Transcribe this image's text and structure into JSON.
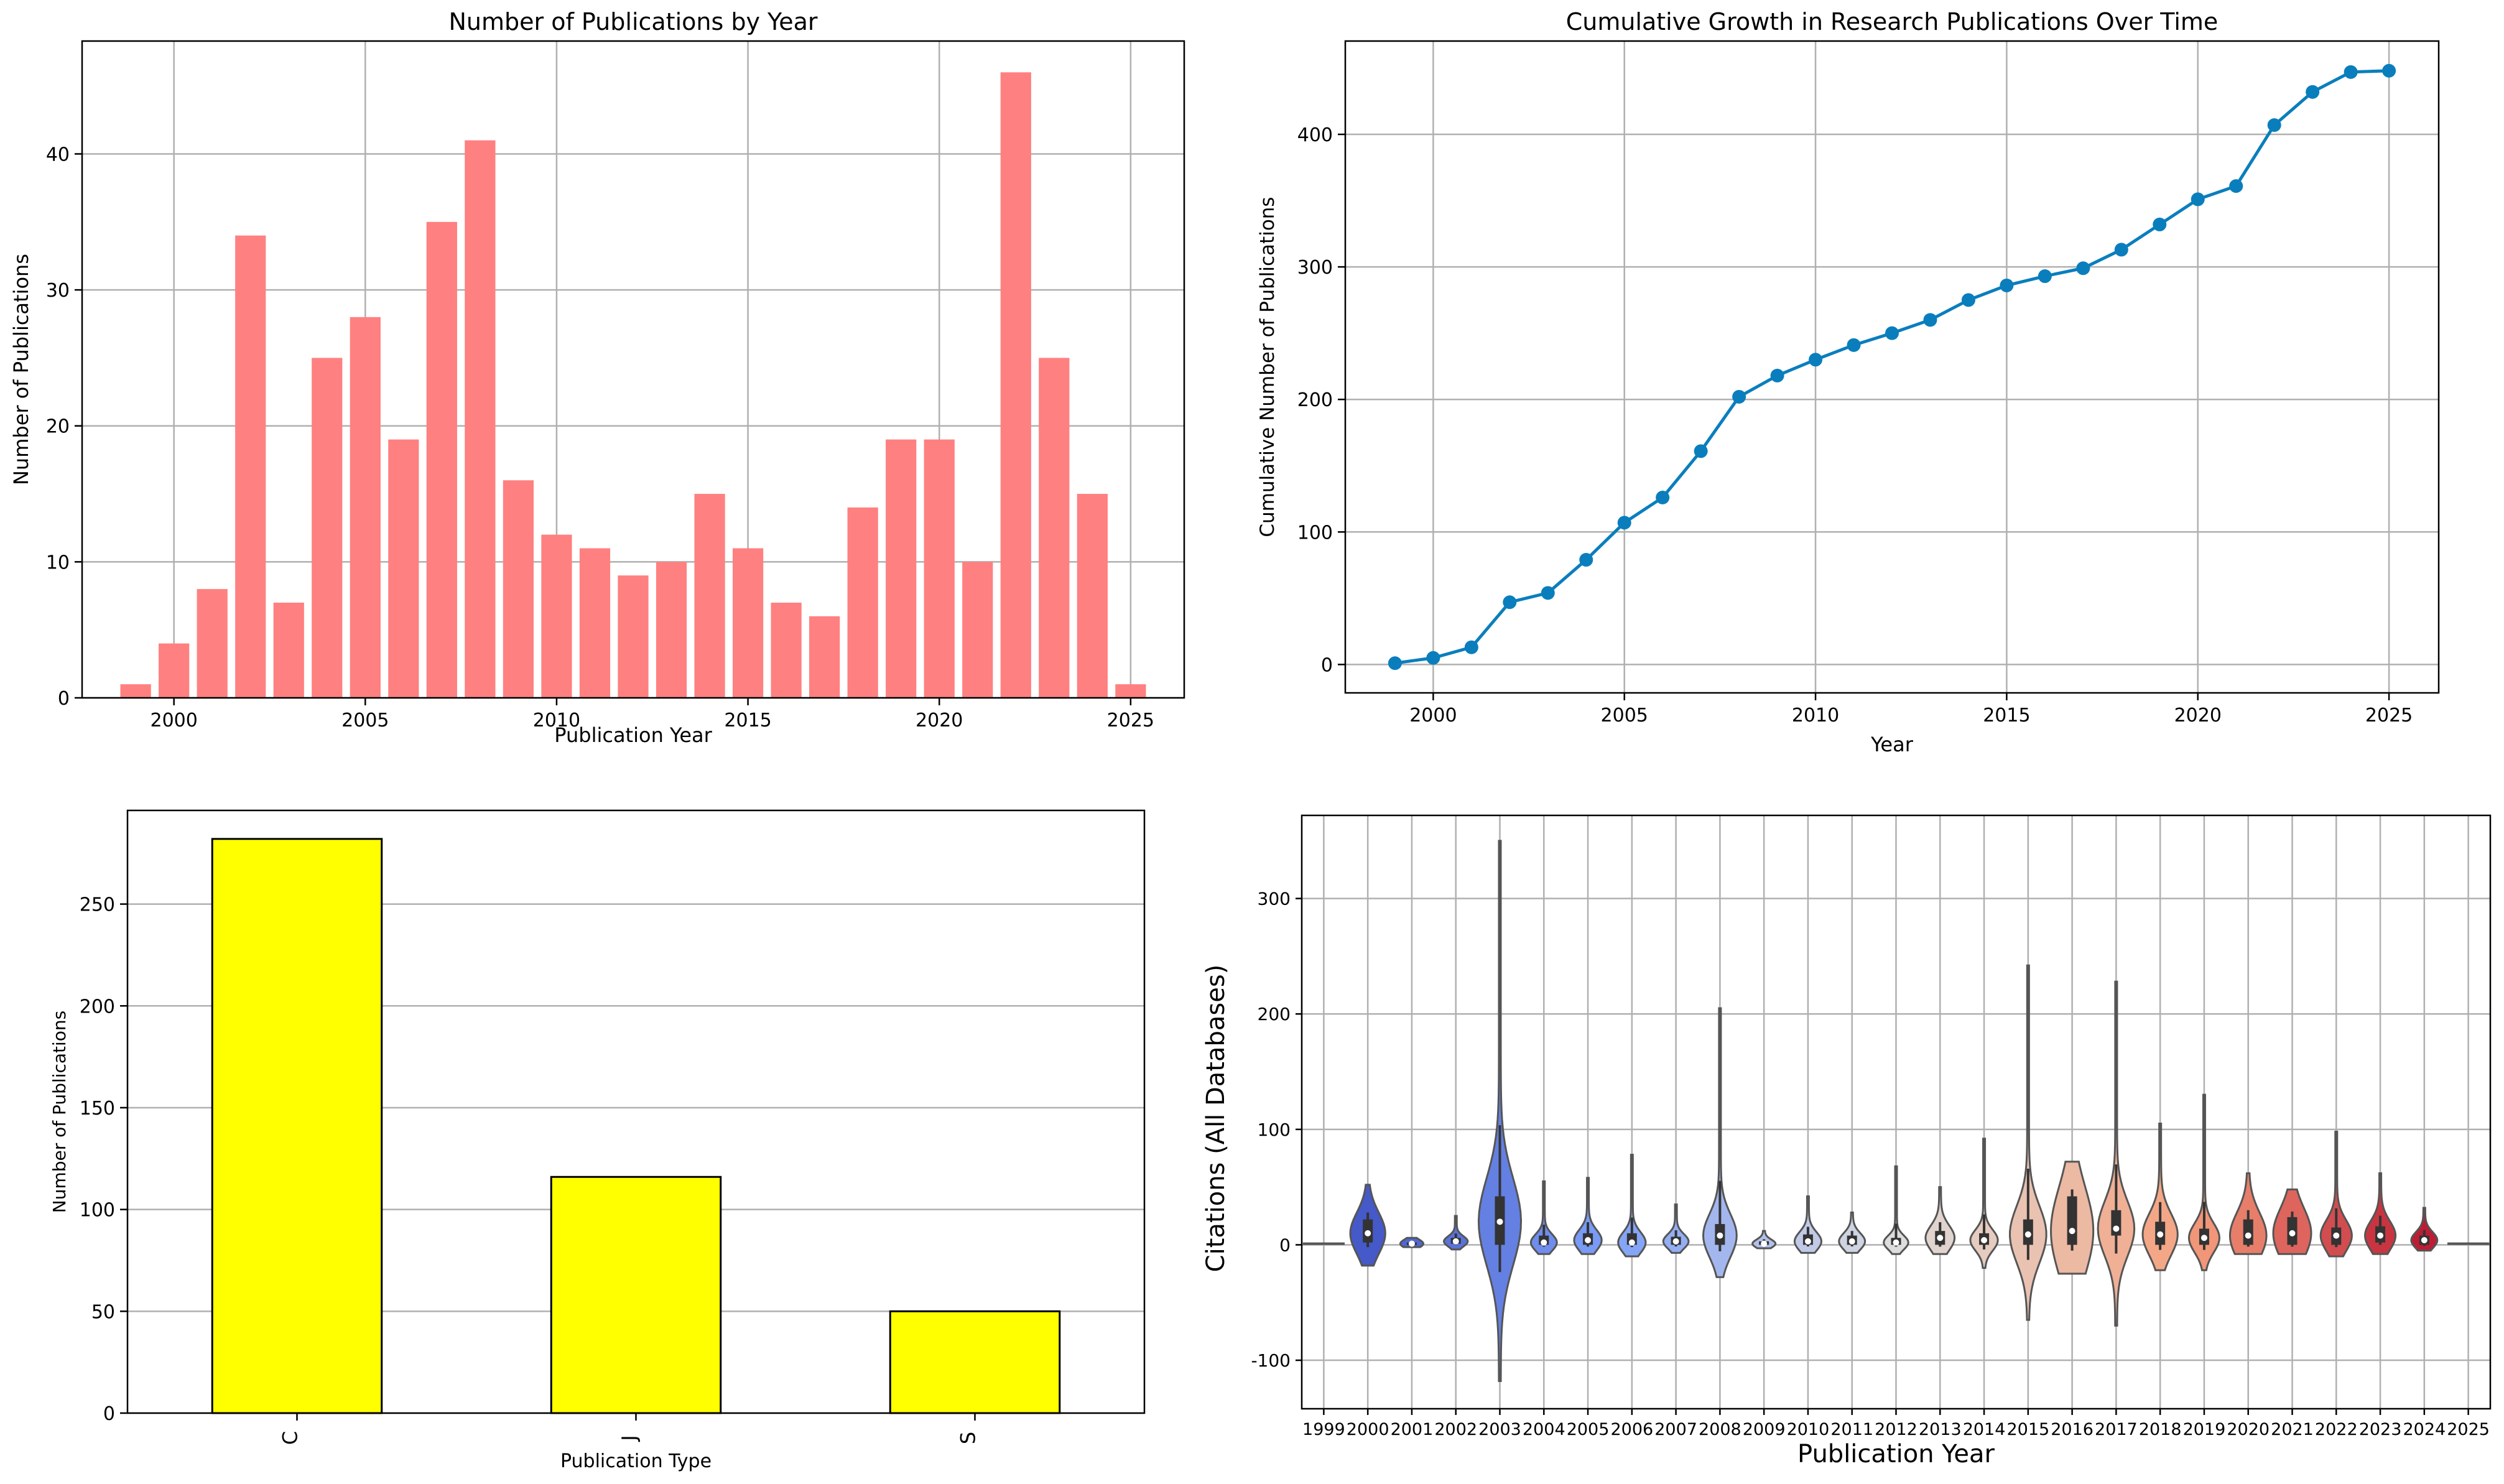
{
  "chart_data": [
    {
      "type": "bar",
      "title": "Number of Publications by Year",
      "xlabel": "Publication Year",
      "ylabel": "Number of Publications",
      "color": "#ff8080",
      "grid": true,
      "x": [
        1999,
        2000,
        2001,
        2002,
        2003,
        2004,
        2005,
        2006,
        2007,
        2008,
        2009,
        2010,
        2011,
        2012,
        2013,
        2014,
        2015,
        2016,
        2017,
        2018,
        2019,
        2020,
        2021,
        2022,
        2023,
        2024,
        2025
      ],
      "values": [
        1,
        4,
        8,
        34,
        7,
        25,
        28,
        19,
        35,
        41,
        16,
        12,
        11,
        9,
        10,
        15,
        11,
        7,
        6,
        14,
        19,
        19,
        10,
        46,
        25,
        15,
        1
      ],
      "xlim": [
        1997.6,
        2026.4
      ],
      "ylim": [
        0,
        48.3
      ],
      "xticks": [
        "2000",
        "2005",
        "2010",
        "2015",
        "2020",
        "2025"
      ],
      "yticks": [
        "0",
        "10",
        "20",
        "30",
        "40"
      ]
    },
    {
      "type": "line",
      "title": "Cumulative Growth in Research Publications Over Time",
      "xlabel": "Year",
      "ylabel": "Cumulative Number of Publications",
      "color": "#0a7ebd",
      "grid": true,
      "x": [
        1999,
        2000,
        2001,
        2002,
        2003,
        2004,
        2005,
        2006,
        2007,
        2008,
        2009,
        2010,
        2011,
        2012,
        2013,
        2014,
        2015,
        2016,
        2017,
        2018,
        2019,
        2020,
        2021,
        2022,
        2023,
        2024,
        2025
      ],
      "values": [
        1,
        5,
        13,
        47,
        54,
        79,
        107,
        126,
        161,
        202,
        218,
        230,
        241,
        250,
        260,
        275,
        286,
        293,
        299,
        313,
        332,
        351,
        361,
        407,
        432,
        447,
        448
      ],
      "xlim": [
        1997.7,
        2026.3
      ],
      "ylim": [
        -21.4,
        470.4
      ],
      "xticks": [
        "2000",
        "2005",
        "2010",
        "2015",
        "2020",
        "2025"
      ],
      "yticks": [
        "0",
        "100",
        "200",
        "300",
        "400"
      ]
    },
    {
      "type": "bar",
      "title": "",
      "xlabel": "Publication Type",
      "ylabel": "Number of Publications",
      "color": "#ffff00",
      "grid": true,
      "categories": [
        "C",
        "J",
        "S"
      ],
      "values": [
        282,
        116,
        50
      ],
      "ylim": [
        0,
        296
      ],
      "yticks": [
        "0",
        "50",
        "100",
        "150",
        "200",
        "250"
      ]
    },
    {
      "type": "violin",
      "title": "",
      "xlabel": "Publication Year",
      "ylabel": "Citations (All Databases)",
      "grid": true,
      "ylim": [
        -142,
        372
      ],
      "yticks": [
        "-100",
        "0",
        "100",
        "200",
        "300"
      ],
      "categories": [
        "1999",
        "2000",
        "2001",
        "2002",
        "2003",
        "2004",
        "2005",
        "2006",
        "2007",
        "2008",
        "2009",
        "2010",
        "2011",
        "2012",
        "2013",
        "2014",
        "2015",
        "2016",
        "2017",
        "2018",
        "2019",
        "2020",
        "2021",
        "2022",
        "2023",
        "2024",
        "2025"
      ],
      "min": [
        1,
        -18,
        -2,
        -4,
        -118,
        -8,
        -8,
        -10,
        -7,
        -28,
        -3,
        -7,
        -7,
        -8,
        -8,
        -20,
        -65,
        -25,
        -70,
        -22,
        -22,
        -8,
        -8,
        -10,
        -8,
        -5,
        1
      ],
      "max": [
        1,
        52,
        6,
        25,
        350,
        55,
        58,
        78,
        35,
        205,
        12,
        42,
        28,
        68,
        50,
        92,
        242,
        72,
        228,
        105,
        130,
        62,
        48,
        98,
        62,
        32,
        1
      ],
      "q1": [
        1,
        2,
        0,
        1,
        0,
        0,
        0,
        0,
        0,
        0,
        0,
        0,
        0,
        0,
        0,
        0,
        0,
        0,
        8,
        0,
        0,
        0,
        0,
        0,
        2,
        0,
        1
      ],
      "median": [
        1,
        10,
        1,
        3,
        20,
        2,
        4,
        2,
        3,
        8,
        1,
        3,
        3,
        2,
        6,
        4,
        9,
        12,
        14,
        9,
        6,
        8,
        10,
        8,
        8,
        4,
        1
      ],
      "q3": [
        1,
        22,
        2,
        6,
        42,
        8,
        10,
        10,
        7,
        18,
        3,
        9,
        8,
        6,
        12,
        10,
        22,
        42,
        30,
        20,
        14,
        22,
        24,
        15,
        16,
        8,
        1
      ]
    }
  ]
}
